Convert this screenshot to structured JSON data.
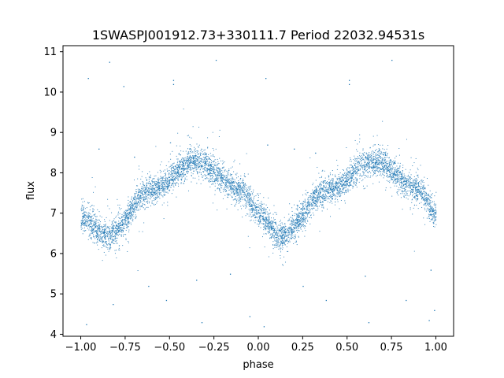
{
  "chart_data": {
    "type": "scatter",
    "title": "1SWASPJ001912.73+330111.7 Period 22032.94531s",
    "xlabel": "phase",
    "ylabel": "flux",
    "xlim": [
      -1.1,
      1.1
    ],
    "ylim": [
      3.95,
      11.15
    ],
    "xticks": [
      -1.0,
      -0.75,
      -0.5,
      -0.25,
      0.0,
      0.25,
      0.5,
      0.75,
      1.0
    ],
    "xtick_labels": [
      "−1.00",
      "−0.75",
      "−0.50",
      "−0.25",
      "0.00",
      "0.25",
      "0.50",
      "0.75",
      "1.00"
    ],
    "yticks": [
      4,
      5,
      6,
      7,
      8,
      9,
      10,
      11
    ],
    "ytick_labels": [
      "4",
      "5",
      "6",
      "7",
      "8",
      "9",
      "10",
      "11"
    ],
    "grid": false,
    "marker_color": "#1f77b4",
    "light_curve": {
      "description_of_trend": "sinusoidal, two cycles over phase -1 to 1",
      "phase": [
        -1.0,
        -0.85,
        -0.6,
        -0.35,
        -0.1,
        0.0,
        0.12,
        0.4,
        0.65,
        0.9,
        1.0
      ],
      "flux": [
        6.9,
        6.45,
        7.6,
        8.3,
        7.6,
        7.0,
        6.45,
        7.6,
        8.3,
        7.6,
        7.0
      ]
    },
    "outliers": [
      {
        "x": -0.96,
        "y": 10.35
      },
      {
        "x": -0.84,
        "y": 10.75
      },
      {
        "x": -0.76,
        "y": 10.15
      },
      {
        "x": -0.48,
        "y": 10.3
      },
      {
        "x": -0.48,
        "y": 10.2
      },
      {
        "x": -0.24,
        "y": 10.8
      },
      {
        "x": 0.04,
        "y": 10.35
      },
      {
        "x": 0.51,
        "y": 10.3
      },
      {
        "x": 0.51,
        "y": 10.2
      },
      {
        "x": 0.75,
        "y": 10.8
      },
      {
        "x": -0.97,
        "y": 4.25
      },
      {
        "x": -0.82,
        "y": 4.75
      },
      {
        "x": -0.62,
        "y": 5.2
      },
      {
        "x": -0.52,
        "y": 4.85
      },
      {
        "x": -0.32,
        "y": 4.3
      },
      {
        "x": -0.05,
        "y": 4.45
      },
      {
        "x": 0.03,
        "y": 4.2
      },
      {
        "x": 0.38,
        "y": 4.85
      },
      {
        "x": 0.62,
        "y": 4.3
      },
      {
        "x": 0.83,
        "y": 4.85
      },
      {
        "x": 0.96,
        "y": 4.35
      },
      {
        "x": 0.99,
        "y": 4.6
      },
      {
        "x": -0.35,
        "y": 5.35
      },
      {
        "x": 0.25,
        "y": 5.2
      },
      {
        "x": -0.16,
        "y": 5.5
      },
      {
        "x": 0.6,
        "y": 5.45
      },
      {
        "x": 0.97,
        "y": 5.6
      },
      {
        "x": -0.9,
        "y": 8.6
      },
      {
        "x": 0.2,
        "y": 8.6
      },
      {
        "x": -0.7,
        "y": 8.4
      },
      {
        "x": 0.05,
        "y": 8.7
      },
      {
        "x": 0.32,
        "y": 8.5
      }
    ]
  }
}
